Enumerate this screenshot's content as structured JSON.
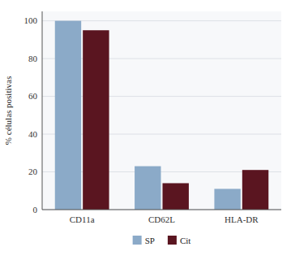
{
  "chart_data": {
    "type": "bar",
    "categories": [
      "CD11a",
      "CD62L",
      "HLA-DR"
    ],
    "series": [
      {
        "name": "SP",
        "color": "#8baac8",
        "values": [
          100,
          23,
          11
        ]
      },
      {
        "name": "Cit",
        "color": "#5a1520",
        "values": [
          95,
          14,
          21
        ]
      }
    ],
    "y_label": "% células positivas",
    "ylim": [
      0,
      105
    ],
    "yticks": [
      0,
      20,
      40,
      60,
      80,
      100
    ],
    "grid": true,
    "legend": "bottom"
  }
}
